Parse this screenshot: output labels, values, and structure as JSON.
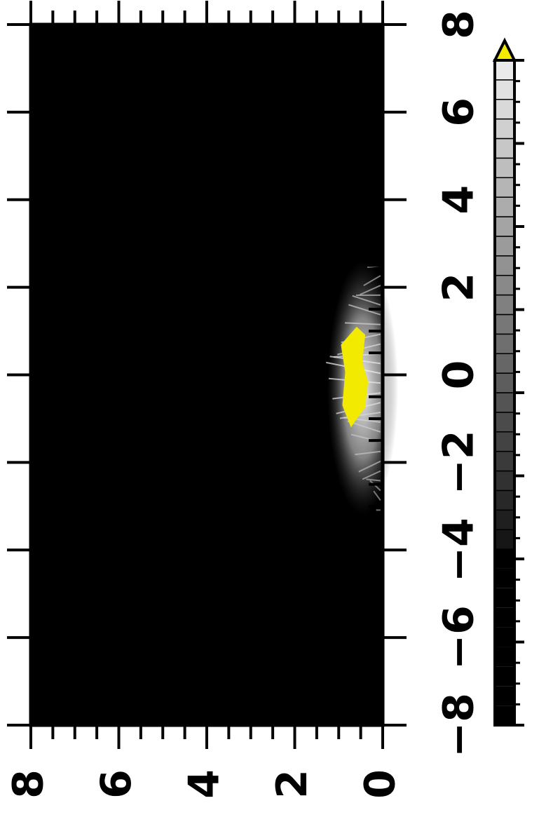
{
  "chart_data": {
    "type": "heatmap",
    "title": "",
    "xlabel": "",
    "ylabel": "",
    "orientation": "rotated 90 degrees clockwise (labels read sideways)",
    "x_axis": {
      "side": "right",
      "range": [
        -8,
        8
      ],
      "ticks": [
        -8,
        -6,
        -4,
        -2,
        0,
        2,
        4,
        6,
        8
      ],
      "tick_labels": [
        "−8",
        "−6",
        "−4",
        "−2",
        "0",
        "2",
        "4",
        "6",
        "8"
      ]
    },
    "y_axis": {
      "side": "bottom",
      "range": [
        0,
        8
      ],
      "ticks": [
        0,
        2,
        4,
        6,
        8
      ],
      "tick_labels": [
        "0",
        "2",
        "4",
        "6",
        "8"
      ]
    },
    "colorbar": {
      "range": [
        -8,
        8
      ],
      "ticks": [
        -8,
        -6,
        -4,
        -2,
        0,
        2,
        4,
        6,
        8
      ],
      "tick_labels": [
        "−8",
        "−6",
        "−4",
        "−2",
        "0",
        "2",
        "4",
        "6",
        "8"
      ],
      "colormap": "grayscale (black to white)",
      "over_color": "#f2ea00",
      "extend": "max"
    },
    "background_color": "#000000",
    "feature": {
      "description": "bright plume at y = 0 edge, centred near x = 0",
      "x_extent": [
        -3.2,
        2.6
      ],
      "y_extent": [
        0,
        1.3
      ],
      "saturated_core_x": [
        -1.2,
        1.1
      ],
      "saturated_core_y": [
        0.3,
        0.95
      ]
    },
    "grid": false,
    "legend": "colorbar on right"
  }
}
